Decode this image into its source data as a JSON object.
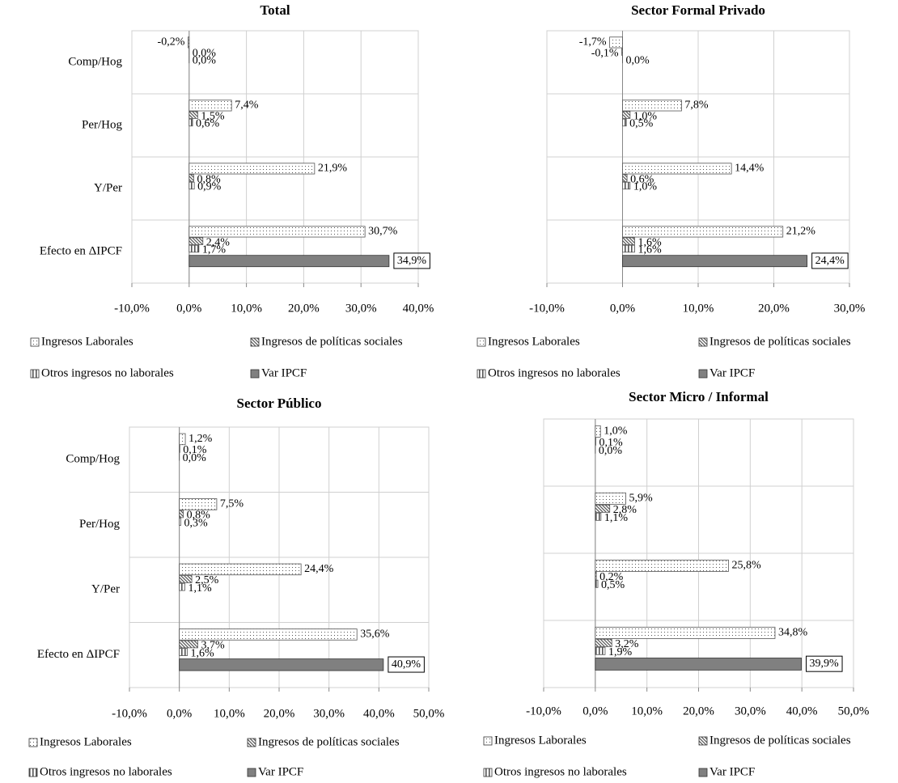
{
  "chart_data": [
    {
      "type": "bar",
      "orientation": "horizontal",
      "title": "Total",
      "categories": [
        "Comp/Hog",
        "Per/Hog",
        "Y/Per",
        "Efecto en ΔIPCF"
      ],
      "series": [
        {
          "name": "Ingresos Laborales",
          "color": "#555555",
          "pattern": "dots",
          "values": [
            -0.2,
            7.4,
            21.9,
            30.7
          ],
          "value_labels": [
            "-0,2%",
            "7,4%",
            "21,9%",
            "30,7%"
          ]
        },
        {
          "name": "Ingresos de políticas sociales",
          "color": "#555555",
          "pattern": "hatch",
          "values": [
            0.0,
            1.5,
            0.8,
            2.4
          ],
          "value_labels": [
            "0,0%",
            "1,5%",
            "0,8%",
            "2,4%"
          ]
        },
        {
          "name": "Otros ingresos no laborales",
          "color": "#555555",
          "pattern": "stripes",
          "values": [
            0.0,
            0.6,
            0.9,
            1.7
          ],
          "value_labels": [
            "0,0%",
            "0,6%",
            "0,9%",
            "1,7%"
          ]
        },
        {
          "name": "Var IPCF",
          "color": "#808080",
          "pattern": "solid",
          "values": [
            null,
            null,
            null,
            34.9
          ],
          "value_labels": [
            null,
            null,
            null,
            "34,9%"
          ]
        }
      ],
      "xlim": [
        -10,
        40
      ],
      "xticks": [
        {
          "value": -10,
          "label": "-10,0%"
        },
        {
          "value": 0,
          "label": "0,0%"
        },
        {
          "value": 10,
          "label": "10,0%"
        },
        {
          "value": 20,
          "label": "20,0%"
        },
        {
          "value": 30,
          "label": "30,0%"
        },
        {
          "value": 40,
          "label": "40,0%"
        }
      ],
      "grid": true
    },
    {
      "type": "bar",
      "orientation": "horizontal",
      "title": "Sector Formal Privado",
      "categories": [
        null,
        null,
        null,
        null
      ],
      "series": [
        {
          "name": "Ingresos Laborales",
          "color": "#555555",
          "pattern": "dots",
          "values": [
            -1.7,
            7.8,
            14.4,
            21.2
          ],
          "value_labels": [
            "-1,7%",
            "7,8%",
            "14,4%",
            "21,2%"
          ]
        },
        {
          "name": "Ingresos de políticas sociales",
          "color": "#555555",
          "pattern": "hatch",
          "values": [
            -0.1,
            1.0,
            0.6,
            1.6
          ],
          "value_labels": [
            "-0,1%",
            "1,0%",
            "0,6%",
            "1,6%"
          ]
        },
        {
          "name": "Otros ingresos no laborales",
          "color": "#555555",
          "pattern": "stripes",
          "values": [
            0.0,
            0.5,
            1.0,
            1.6
          ],
          "value_labels": [
            "0,0%",
            "0,5%",
            "1,0%",
            "1,6%"
          ]
        },
        {
          "name": "Var IPCF",
          "color": "#808080",
          "pattern": "solid",
          "values": [
            null,
            null,
            null,
            24.4
          ],
          "value_labels": [
            null,
            null,
            null,
            "24,4%"
          ]
        }
      ],
      "xlim": [
        -10,
        30
      ],
      "xticks": [
        {
          "value": -10,
          "label": "-10,0%"
        },
        {
          "value": 0,
          "label": "0,0%"
        },
        {
          "value": 10,
          "label": "10,0%"
        },
        {
          "value": 20,
          "label": "20,0%"
        },
        {
          "value": 30,
          "label": "30,0%"
        }
      ],
      "grid": true
    },
    {
      "type": "bar",
      "orientation": "horizontal",
      "title": "Sector Público",
      "categories": [
        "Comp/Hog",
        "Per/Hog",
        "Y/Per",
        "Efecto en ΔIPCF"
      ],
      "series": [
        {
          "name": "Ingresos Laborales",
          "color": "#555555",
          "pattern": "dots",
          "values": [
            1.2,
            7.5,
            24.4,
            35.6
          ],
          "value_labels": [
            "1,2%",
            "7,5%",
            "24,4%",
            "35,6%"
          ]
        },
        {
          "name": "Ingresos de políticas sociales",
          "color": "#555555",
          "pattern": "hatch",
          "values": [
            0.1,
            0.8,
            2.5,
            3.7
          ],
          "value_labels": [
            "0,1%",
            "0,8%",
            "2,5%",
            "3,7%"
          ]
        },
        {
          "name": "Otros ingresos no laborales",
          "color": "#555555",
          "pattern": "stripes",
          "values": [
            0.0,
            0.3,
            1.1,
            1.6
          ],
          "value_labels": [
            "0,0%",
            "0,3%",
            "1,1%",
            "1,6%"
          ]
        },
        {
          "name": "Var IPCF",
          "color": "#808080",
          "pattern": "solid",
          "values": [
            null,
            null,
            null,
            40.9
          ],
          "value_labels": [
            null,
            null,
            null,
            "40,9%"
          ]
        }
      ],
      "xlim": [
        -10,
        50
      ],
      "xticks": [
        {
          "value": -10,
          "label": "-10,0%"
        },
        {
          "value": 0,
          "label": "0,0%"
        },
        {
          "value": 10,
          "label": "10,0%"
        },
        {
          "value": 20,
          "label": "20,0%"
        },
        {
          "value": 30,
          "label": "30,0%"
        },
        {
          "value": 40,
          "label": "40,0%"
        },
        {
          "value": 50,
          "label": "50,0%"
        }
      ],
      "grid": true
    },
    {
      "type": "bar",
      "orientation": "horizontal",
      "title": "Sector Micro / Informal",
      "categories": [
        null,
        null,
        null,
        null
      ],
      "series": [
        {
          "name": "Ingresos Laborales",
          "color": "#555555",
          "pattern": "dots",
          "values": [
            1.0,
            5.9,
            25.8,
            34.8
          ],
          "value_labels": [
            "1,0%",
            "5,9%",
            "25,8%",
            "34,8%"
          ]
        },
        {
          "name": "Ingresos de políticas sociales",
          "color": "#555555",
          "pattern": "hatch",
          "values": [
            0.1,
            2.8,
            0.2,
            3.2
          ],
          "value_labels": [
            "0,1%",
            "2,8%",
            "0,2%",
            "3,2%"
          ]
        },
        {
          "name": "Otros ingresos no laborales",
          "color": "#555555",
          "pattern": "stripes",
          "values": [
            0.0,
            1.1,
            0.5,
            1.9
          ],
          "value_labels": [
            "0,0%",
            "1,1%",
            "0,5%",
            "1,9%"
          ]
        },
        {
          "name": "Var IPCF",
          "color": "#808080",
          "pattern": "solid",
          "values": [
            null,
            null,
            null,
            39.9
          ],
          "value_labels": [
            null,
            null,
            null,
            "39,9%"
          ]
        }
      ],
      "xlim": [
        -10,
        50
      ],
      "xticks": [
        {
          "value": -10,
          "label": "-10,0%"
        },
        {
          "value": 0,
          "label": "0,0%"
        },
        {
          "value": 10,
          "label": "10,0%"
        },
        {
          "value": 20,
          "label": "20,0%"
        },
        {
          "value": 30,
          "label": "30,0%"
        },
        {
          "value": 40,
          "label": "40,0%"
        },
        {
          "value": 50,
          "label": "50,0%"
        }
      ],
      "grid": true
    }
  ]
}
